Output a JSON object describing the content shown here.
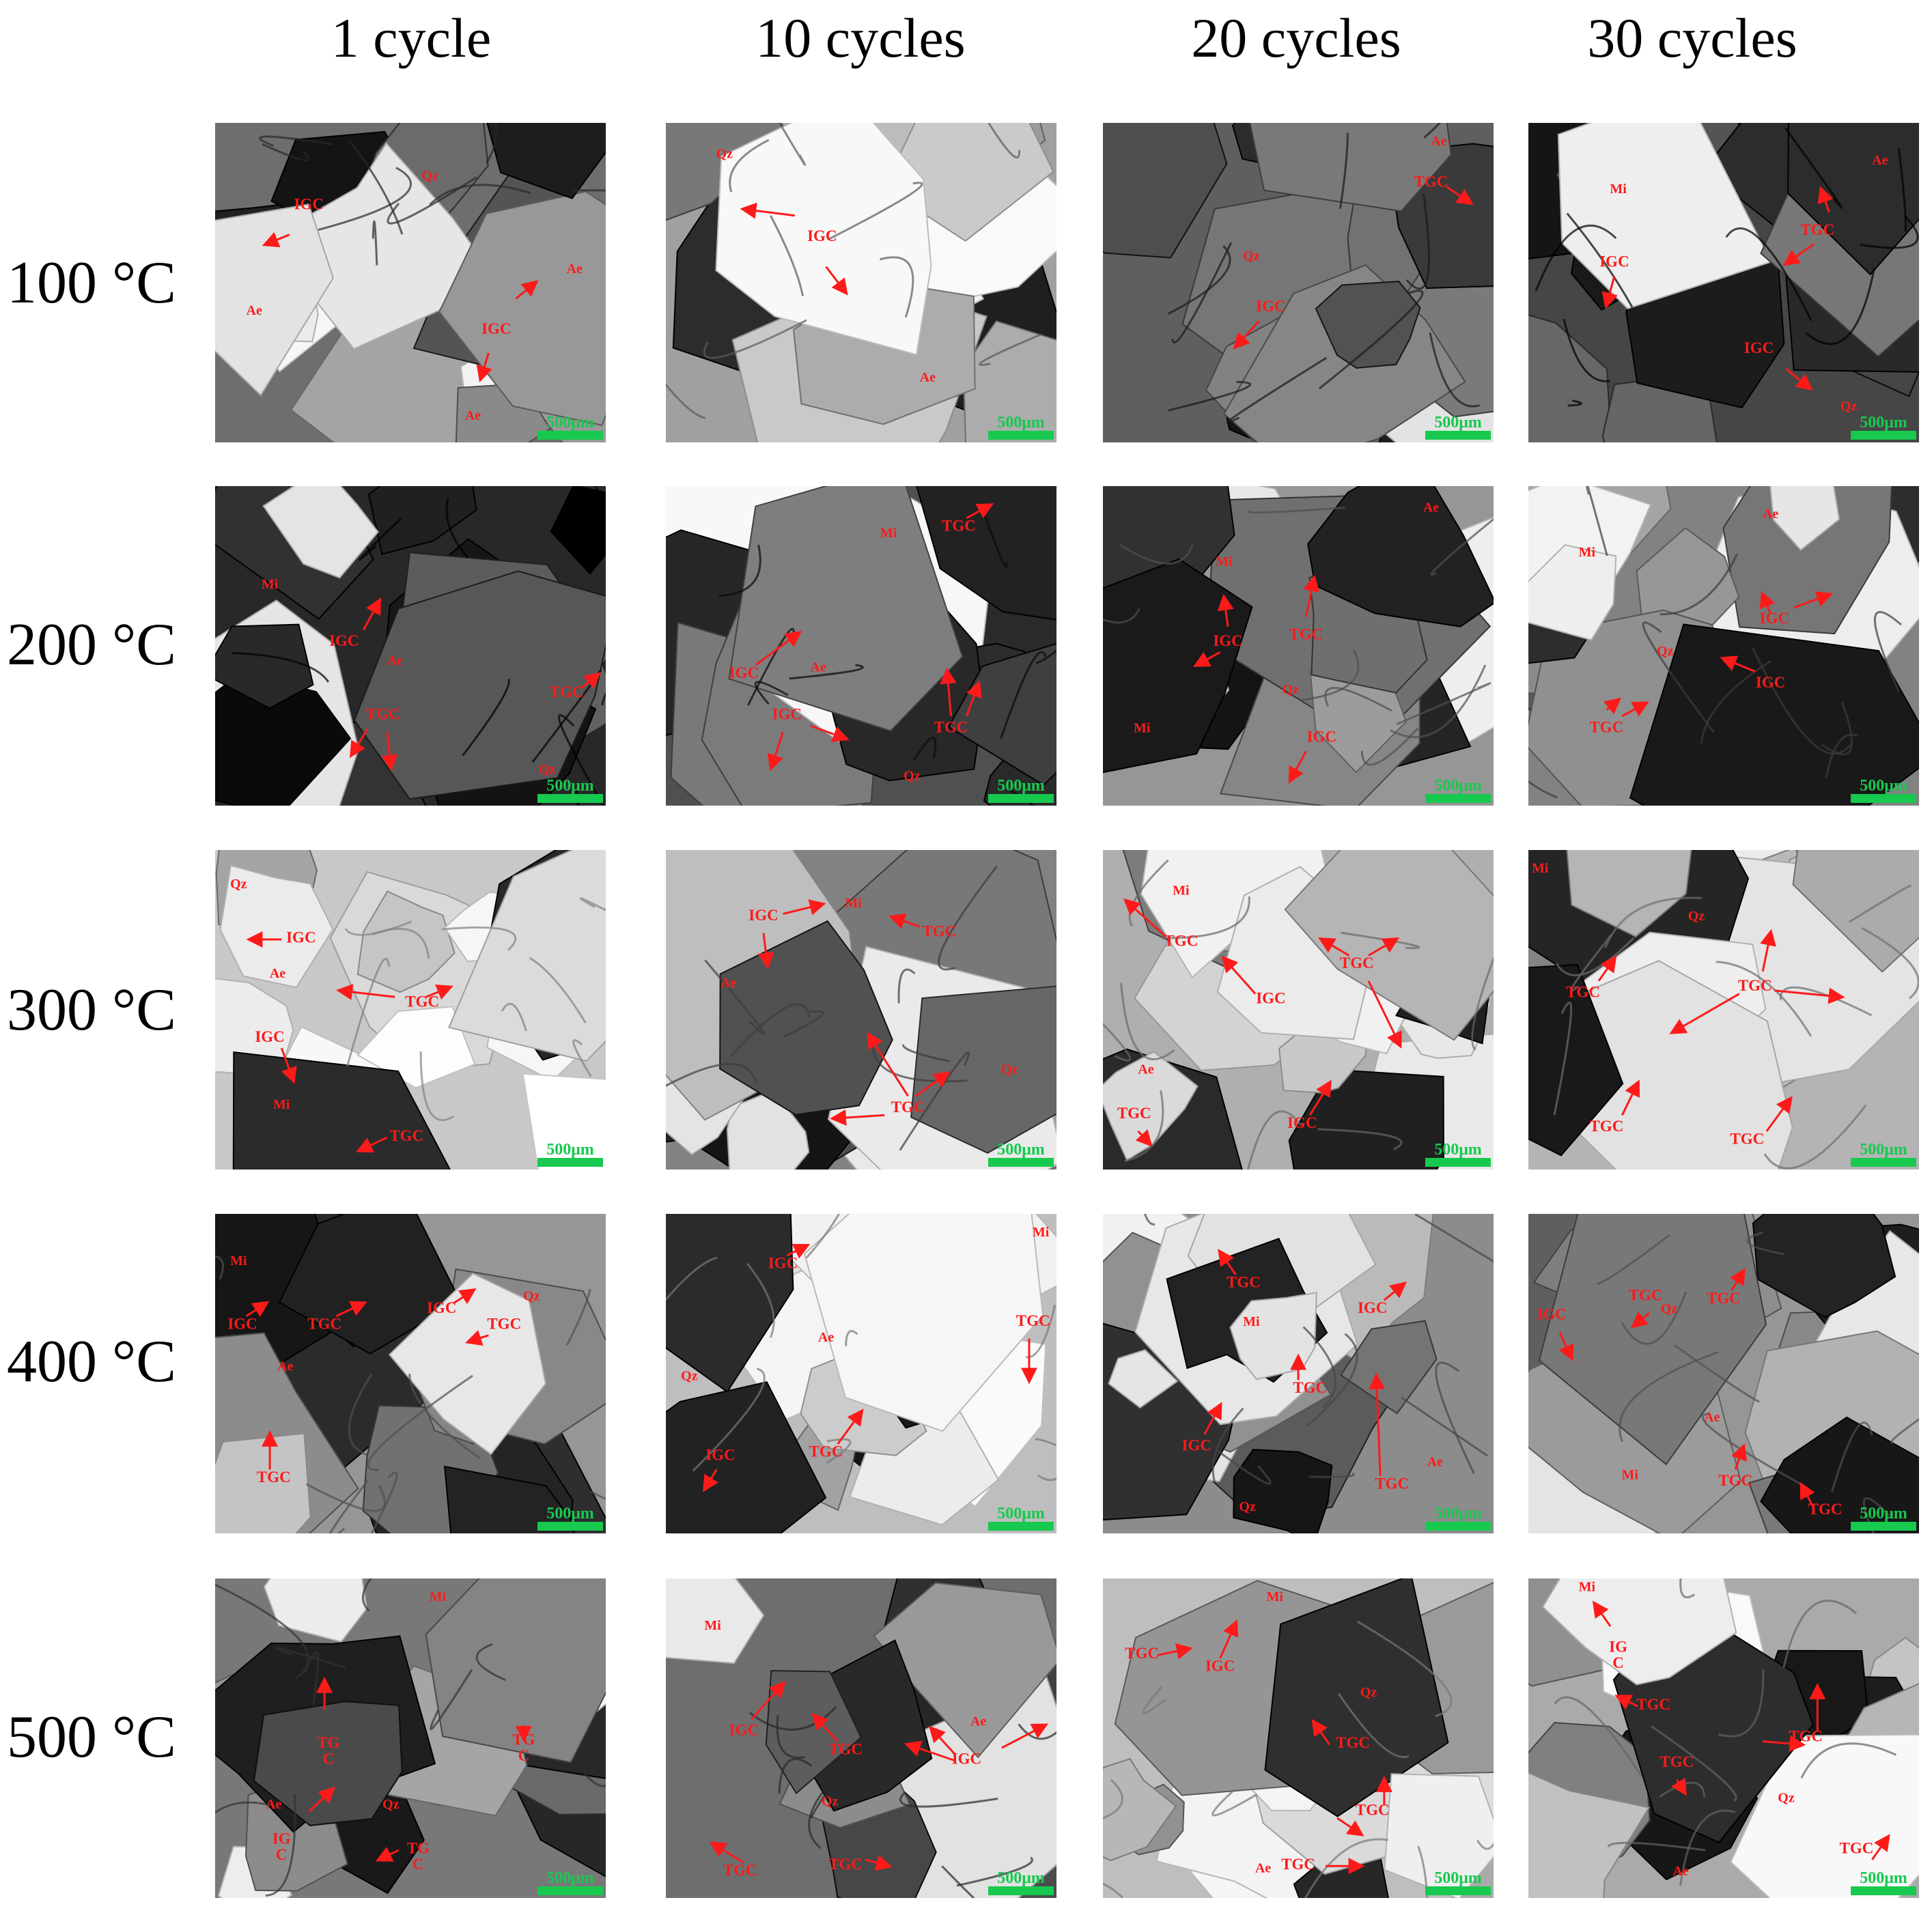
{
  "columns": [
    "1 cycle",
    "10 cycles",
    "20 cycles",
    "30 cycles"
  ],
  "rows": [
    "100 °C",
    "200 °C",
    "300 °C",
    "400 °C",
    "500 °C"
  ],
  "scale_bar": "500μm",
  "colors": {
    "annotation": "#ff1a1a",
    "scale_bar": "#17c94f"
  },
  "panels": [
    [
      {
        "minerals": [
          "Qz",
          "Ae",
          "Ae",
          "Ae"
        ],
        "labels": [
          "IGC",
          "IGC"
        ]
      },
      {
        "minerals": [
          "Qz",
          "Ae"
        ],
        "labels": [
          "IGC"
        ]
      },
      {
        "minerals": [
          "Ae",
          "Qz"
        ],
        "labels": [
          "TGC",
          "IGC"
        ]
      },
      {
        "minerals": [
          "Ae",
          "Mi",
          "Qz"
        ],
        "labels": [
          "TGC",
          "IGC",
          "IGC"
        ]
      }
    ],
    [
      {
        "minerals": [
          "Mi",
          "Ae",
          "Qz"
        ],
        "labels": [
          "IGC",
          "TGC",
          "TGC"
        ]
      },
      {
        "minerals": [
          "Mi",
          "Ae",
          "Qz"
        ],
        "labels": [
          "TGC",
          "IGC",
          "IGC",
          "TGC"
        ]
      },
      {
        "minerals": [
          "Ae",
          "Mi",
          "Qz",
          "Mi"
        ],
        "labels": [
          "IGC",
          "TGC",
          "IGC"
        ]
      },
      {
        "minerals": [
          "Ae",
          "Mi",
          "Qz"
        ],
        "labels": [
          "IGC",
          "IGC",
          "TGC"
        ]
      }
    ],
    [
      {
        "minerals": [
          "Qz",
          "Ae",
          "Mi"
        ],
        "labels": [
          "IGC",
          "TGC",
          "IGC",
          "TGC"
        ]
      },
      {
        "minerals": [
          "Mi",
          "Ae",
          "Qz"
        ],
        "labels": [
          "IGC",
          "TGC",
          "TGC"
        ]
      },
      {
        "minerals": [
          "Mi",
          "Ae"
        ],
        "labels": [
          "TGC",
          "IGC",
          "TGC",
          "IGC",
          "TGC"
        ]
      },
      {
        "minerals": [
          "Mi",
          "Qz"
        ],
        "labels": [
          "TGC",
          "TGC",
          "TGC",
          "TGC"
        ]
      }
    ],
    [
      {
        "minerals": [
          "Mi",
          "Qz",
          "Ae"
        ],
        "labels": [
          "IGC",
          "TGC",
          "IGC",
          "TGC",
          "TGC"
        ]
      },
      {
        "minerals": [
          "Mi",
          "Ae",
          "Qz"
        ],
        "labels": [
          "IGC",
          "TGC",
          "TGC",
          "IGC"
        ]
      },
      {
        "minerals": [
          "Mi",
          "Ae",
          "Qz"
        ],
        "labels": [
          "TGC",
          "IGC",
          "TGC",
          "IGC",
          "TGC"
        ]
      },
      {
        "minerals": [
          "Qz",
          "Ae",
          "Mi"
        ],
        "labels": [
          "IGC",
          "TGC",
          "TGC",
          "TGC",
          "TGC"
        ]
      }
    ],
    [
      {
        "minerals": [
          "Mi",
          "Ae",
          "Qz"
        ],
        "labels": [
          "TG",
          "C",
          "TG",
          "C",
          "IG",
          "C",
          "TG",
          "C"
        ]
      },
      {
        "minerals": [
          "Mi",
          "Qz",
          "Ae"
        ],
        "labels": [
          "IGC",
          "TGC",
          "IGC",
          "TGC",
          "TGC"
        ]
      },
      {
        "minerals": [
          "Mi",
          "Qz",
          "Ae"
        ],
        "labels": [
          "TGC",
          "IGC",
          "TGC",
          "TGC",
          "TGC"
        ]
      },
      {
        "minerals": [
          "Mi",
          "Qz",
          "Ae"
        ],
        "labels": [
          "IG",
          "C",
          "TGC",
          "TGC",
          "TGC",
          "TGC"
        ]
      }
    ]
  ]
}
